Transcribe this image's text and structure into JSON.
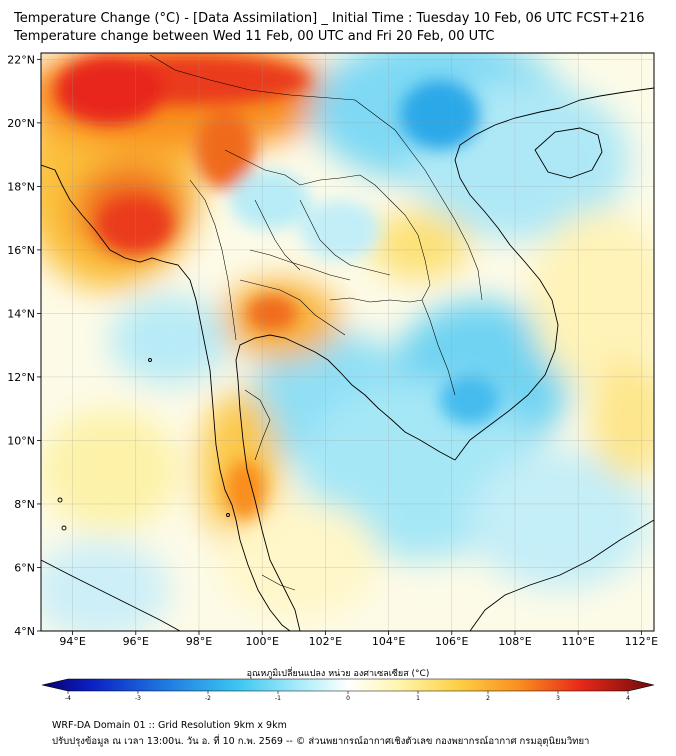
{
  "header": {
    "title_line1": "Temperature Change (°C) - [Data Assimilation] _ Initial Time : Tuesday 10 Feb, 06 UTC FCST+216",
    "title_line2": "Temperature change between Wed 11 Feb, 00 UTC and Fri 20 Feb, 00 UTC"
  },
  "map": {
    "lat_labels": [
      "22°N",
      "20°N",
      "18°N",
      "16°N",
      "14°N",
      "12°N",
      "10°N",
      "8°N",
      "6°N",
      "4°N"
    ],
    "lat_values": [
      22,
      20,
      18,
      16,
      14,
      12,
      10,
      8,
      6,
      4
    ],
    "lon_labels": [
      "94°E",
      "96°E",
      "98°E",
      "100°E",
      "102°E",
      "104°E",
      "106°E",
      "108°E",
      "110°E",
      "112°E"
    ],
    "lon_values": [
      94,
      96,
      98,
      100,
      102,
      104,
      106,
      108,
      110,
      112
    ],
    "lon_range": [
      93,
      112.4
    ],
    "lat_range": [
      4,
      22.2
    ],
    "color_warm_strong": "#e8281a",
    "color_warm": "#f9a326",
    "color_mild_warm": "#fde98a",
    "color_neutral": "#ffffff",
    "color_cool": "#8ee3f5",
    "color_cool_strong": "#2aa8e8"
  },
  "colorbar": {
    "title": "อุณหภูมิเปลี่ยนแปลง หน่วย องศาเซลเซียส (°C)",
    "tick_labels": [
      "-4",
      "-3",
      "-2",
      "-1",
      "0",
      "1",
      "2",
      "3",
      "4"
    ],
    "tick_values": [
      -4,
      -3,
      -2,
      -1,
      0,
      1,
      2,
      3,
      4
    ],
    "range": [
      -4,
      4
    ]
  },
  "footer": {
    "line1": "WRF-DA Domain 01 :: Grid Resolution 9km x 9km",
    "line2": "ปรับปรุงข้อมูล ณ เวลา 13:00น. วัน อ. ที่ 10 ก.พ. 2569 -- © ส่วนพยากรณ์อากาศเชิงตัวเลข กองพยากรณ์อากาศ กรมอุตุนิยมวิทยา"
  }
}
